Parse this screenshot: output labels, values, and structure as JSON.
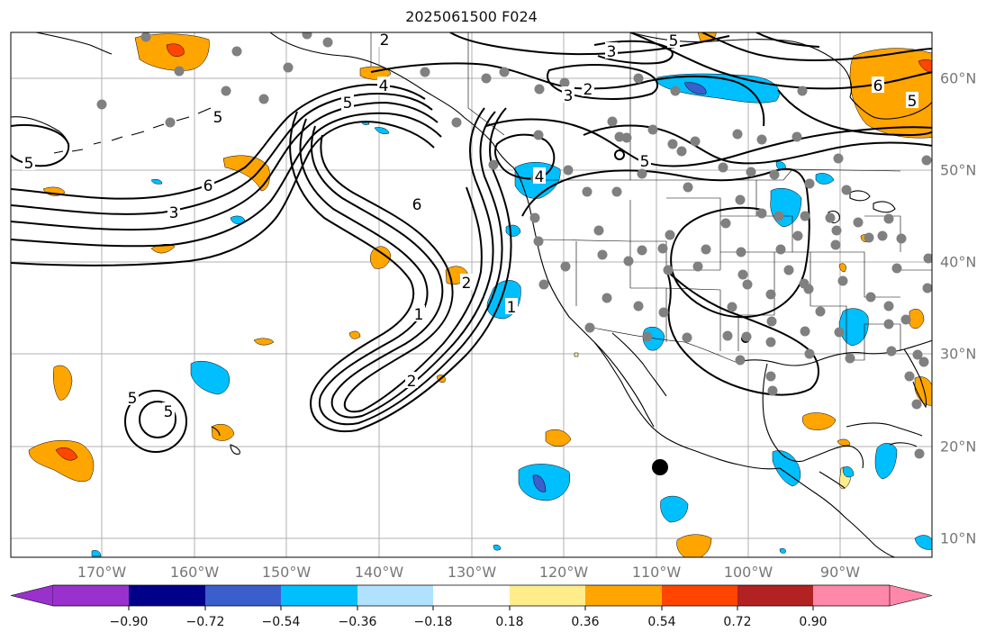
{
  "title": "2025061500 F024",
  "lon_labels": [
    "170°W",
    "160°W",
    "150°W",
    "140°W",
    "130°W",
    "120°W",
    "110°W",
    "100°W",
    "90°W"
  ],
  "lat_labels": [
    "60°N",
    "50°N",
    "40°N",
    "30°N",
    "20°N",
    "10°N"
  ],
  "contour_labels": [
    "2",
    "4",
    "3",
    "2",
    "3",
    "5",
    "6",
    "5",
    "5",
    "5",
    "6",
    "3",
    "6",
    "5",
    "5",
    "4",
    "2",
    "1",
    "2",
    "5",
    "5",
    "1"
  ],
  "colorbar": {
    "ticks": [
      "−0.90",
      "−0.72",
      "−0.54",
      "−0.36",
      "−0.18",
      "0.18",
      "0.36",
      "0.54",
      "0.72",
      "0.90"
    ],
    "colors": [
      "#9932cc",
      "#00008b",
      "#3a5fcd",
      "#00bfff",
      "#b0e2ff",
      "#ffffff",
      "#ffec8b",
      "#ffa500",
      "#ff4500",
      "#b22222",
      "#ff88aa"
    ]
  },
  "colors": {
    "station_dot": "#808080",
    "marker": "#000000",
    "grid": "#b0b0b0"
  }
}
